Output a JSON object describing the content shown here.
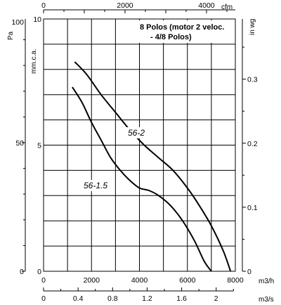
{
  "chart_data": {
    "type": "line",
    "note_lines": [
      "8 Polos (motor 2 veloc.",
      "- 4/8 Polos)"
    ],
    "x_primary": {
      "unit": "m3/h",
      "range": [
        0,
        8000
      ],
      "ticks": [
        0,
        2000,
        4000,
        6000,
        8000
      ],
      "tick_labels": [
        "0",
        "2000",
        "4000",
        "6000",
        "8000"
      ],
      "grid_step": 1000
    },
    "x_top": {
      "unit": "cfm",
      "range": [
        0,
        4708
      ],
      "ticks": [
        0,
        2000,
        4000
      ],
      "tick_labels": [
        "0",
        "2000",
        "4000"
      ]
    },
    "x_bottom2": {
      "unit": "m3/s",
      "range": [
        0,
        2.222
      ],
      "ticks": [
        0,
        0.4,
        0.8,
        1.2,
        1.6,
        2
      ],
      "tick_labels": [
        "0",
        "0.4",
        "0.8",
        "1.2",
        "1.6",
        "2"
      ]
    },
    "y_left_pa": {
      "unit": "Pa",
      "range": [
        0,
        98.07
      ],
      "ticks": [
        0,
        50,
        100
      ],
      "tick_labels": [
        "0",
        "50",
        "100"
      ]
    },
    "y_inner_mm": {
      "unit": "mm.c.a.",
      "range": [
        0,
        10
      ],
      "ticks": [
        0,
        5,
        10
      ],
      "tick_labels": [
        "0",
        "5",
        "10"
      ],
      "grid_step": 1
    },
    "y_right_inwg": {
      "unit": "in wg",
      "range": [
        0,
        0.394
      ],
      "ticks": [
        0,
        0.1,
        0.2,
        0.3
      ],
      "tick_labels": [
        "0",
        "0.1",
        "0.2",
        "0.3"
      ]
    },
    "series": [
      {
        "name": "56-2",
        "x": [
          1300,
          1800,
          2400,
          3000,
          3600,
          4200,
          4800,
          5400,
          6000,
          6500,
          7000,
          7500,
          7800
        ],
        "y": [
          8.3,
          7.8,
          7.0,
          6.3,
          5.6,
          5.0,
          4.5,
          4.0,
          3.3,
          2.6,
          1.8,
          0.8,
          0
        ]
      },
      {
        "name": "56-1.5",
        "x": [
          1200,
          1600,
          2000,
          2400,
          2800,
          3200,
          3600,
          4000,
          4400,
          4800,
          5300,
          5800,
          6300,
          6700,
          7000
        ],
        "y": [
          7.3,
          6.7,
          5.9,
          5.2,
          4.5,
          4.0,
          3.6,
          3.3,
          3.2,
          3.0,
          2.6,
          2.0,
          1.2,
          0.4,
          0
        ]
      }
    ],
    "grid": true
  }
}
